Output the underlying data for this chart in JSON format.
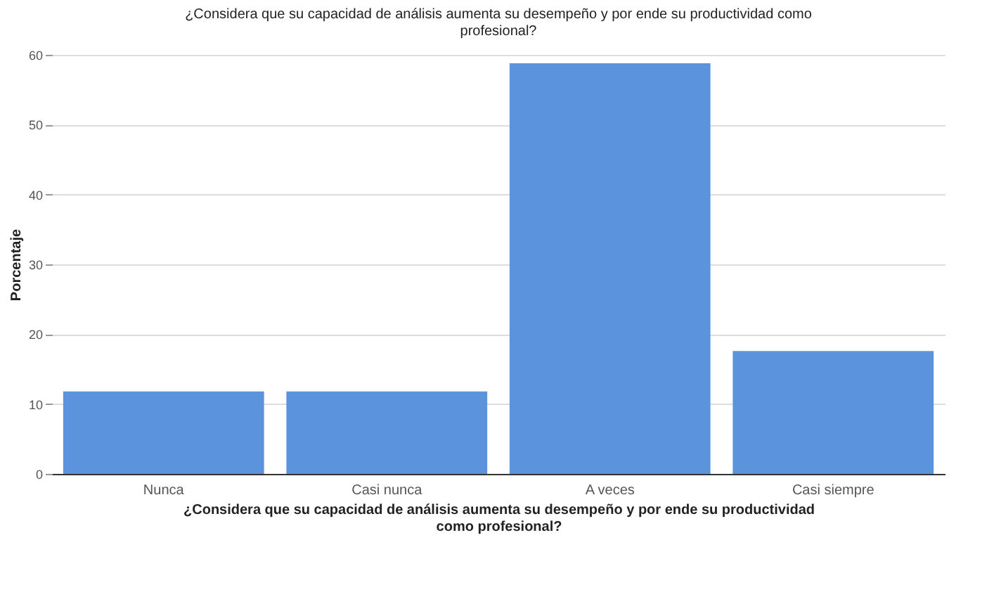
{
  "chart_data": {
    "type": "bar",
    "title": "¿Considera que su capacidad de análisis aumenta su desempeño y por ende su productividad como profesional?",
    "xlabel": "¿Considera que su capacidad de análisis aumenta su desempeño y por ende su productividad como profesional?",
    "ylabel": "Porcentaje",
    "categories": [
      "Nunca",
      "Casi nunca",
      "A veces",
      "Casi siempre"
    ],
    "values": [
      11.8,
      11.8,
      58.8,
      17.6
    ],
    "color": "#5b93dd",
    "ylim": [
      0,
      60
    ],
    "yticks": [
      0,
      10,
      20,
      30,
      40,
      50,
      60
    ],
    "grid": "y"
  }
}
